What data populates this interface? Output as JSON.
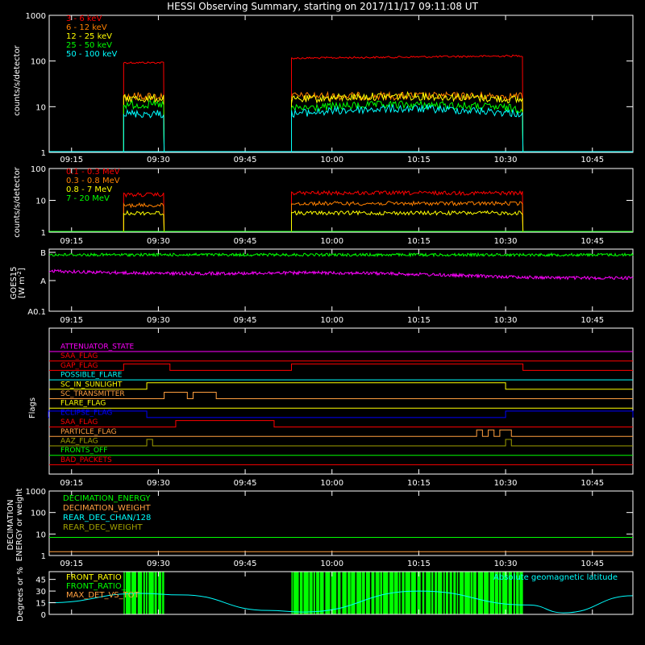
{
  "title": "HESSI Observing Summary, starting on 2017/11/17 09:11:08 UT",
  "x_tick_labels": [
    "09:15",
    "09:30",
    "09:45",
    "10:00",
    "10:15",
    "10:30",
    "10:45"
  ],
  "colors": {
    "red": "#ff0000",
    "orange": "#ff8000",
    "yellow": "#ffff00",
    "green": "#00ff00",
    "cyan": "#00ffff",
    "magenta": "#ff00ff",
    "blue": "#0000ff",
    "white": "#ffffff",
    "olive": "#a0a000",
    "lightorange": "#ff9f3f"
  },
  "chart_data": [
    {
      "type": "line",
      "name": "low_energy",
      "ylabel": "counts/s/detector",
      "yscale": "log",
      "ylim": [
        1,
        1000
      ],
      "ytick_labels": [
        "1",
        "10",
        "100",
        "1000"
      ],
      "xlim": [
        "09:11:08",
        "10:52"
      ],
      "legend_position": "top-left",
      "series": [
        {
          "name": "3 - 6 keV",
          "color": "red",
          "segments": [
            {
              "start": "09:24",
              "end": "09:31",
              "value": 92
            },
            {
              "start": "09:53",
              "end": "10:33",
              "value": 115,
              "end_value": 130
            }
          ]
        },
        {
          "name": "6 - 12 keV",
          "color": "orange",
          "segments": [
            {
              "start": "09:24",
              "end": "09:31",
              "value": 17
            },
            {
              "start": "09:53",
              "end": "10:33",
              "value": 17
            }
          ]
        },
        {
          "name": "12 - 25 keV",
          "color": "yellow",
          "segments": [
            {
              "start": "09:24",
              "end": "09:31",
              "value": 15
            },
            {
              "start": "09:53",
              "end": "10:33",
              "value": 14,
              "peak": 17
            }
          ]
        },
        {
          "name": "25 - 50 keV",
          "color": "green",
          "segments": [
            {
              "start": "09:24",
              "end": "09:31",
              "value": 11
            },
            {
              "start": "09:53",
              "end": "10:33",
              "value": 9,
              "peak": 11
            }
          ]
        },
        {
          "name": "50 - 100 keV",
          "color": "cyan",
          "segments": [
            {
              "start": "09:24",
              "end": "09:31",
              "value": 7
            },
            {
              "start": "09:53",
              "end": "10:33",
              "value": 7,
              "peak": 9
            }
          ]
        }
      ]
    },
    {
      "type": "line",
      "name": "high_energy",
      "ylabel": "counts/s/detector",
      "yscale": "log",
      "ylim": [
        1,
        100
      ],
      "ytick_labels": [
        "1",
        "10",
        "100"
      ],
      "legend_position": "top-left",
      "series": [
        {
          "name": "0.1 - 0.3 MeV",
          "color": "red",
          "segments": [
            {
              "start": "09:24",
              "end": "09:31",
              "value": 15
            },
            {
              "start": "09:53",
              "end": "10:33",
              "value": 17
            }
          ]
        },
        {
          "name": "0.3 - 0.8 MeV",
          "color": "orange",
          "segments": [
            {
              "start": "09:24",
              "end": "09:31",
              "value": 7
            },
            {
              "start": "09:53",
              "end": "10:33",
              "value": 8
            }
          ]
        },
        {
          "name": "0.8 - 7 MeV",
          "color": "yellow",
          "segments": [
            {
              "start": "09:24",
              "end": "09:31",
              "value": 4
            },
            {
              "start": "09:53",
              "end": "10:33",
              "value": 4
            }
          ]
        },
        {
          "name": "7 - 20 MeV",
          "color": "green",
          "segments": [
            {
              "start": "09:11",
              "end": "10:52",
              "value": 1
            }
          ]
        }
      ]
    },
    {
      "type": "line",
      "name": "goes",
      "ylabel": "GOES15",
      "ylabel2": "[W m^-2]",
      "ytick_labels": [
        "A0.1",
        "A",
        "B"
      ],
      "series": [
        {
          "name": "",
          "color": "green",
          "level": "near B"
        },
        {
          "name": "",
          "color": "magenta",
          "level": "between A and B"
        }
      ]
    },
    {
      "type": "flags",
      "name": "flags",
      "ylabel": "Flags",
      "flags": [
        {
          "name": "ATTENUATOR_STATE",
          "color": "magenta",
          "on": []
        },
        {
          "name": "SAA_FLAG",
          "color": "red",
          "on": []
        },
        {
          "name": "GAP_FLAG",
          "color": "red",
          "on": [
            [
              "09:24",
              "09:32"
            ],
            [
              "09:53",
              "10:33"
            ]
          ]
        },
        {
          "name": "POSSIBLE_FLARE",
          "color": "cyan",
          "on": []
        },
        {
          "name": "SC_IN_SUNLIGHT",
          "color": "yellow",
          "on": [
            [
              "09:28",
              "10:30"
            ]
          ]
        },
        {
          "name": "SC_TRANSMITTER",
          "color": "lightorange",
          "on": [
            [
              "09:31",
              "09:35"
            ],
            [
              "09:36",
              "09:40"
            ]
          ]
        },
        {
          "name": "FLARE_FLAG",
          "color": "yellow",
          "on": []
        },
        {
          "name": "ECLIPSE_FLAG",
          "color": "blue",
          "on": [
            [
              "09:11",
              "09:28"
            ],
            [
              "10:30",
              "10:52"
            ]
          ]
        },
        {
          "name": "SAA_FLAG",
          "color": "red",
          "on": [
            [
              "09:33",
              "09:50"
            ]
          ]
        },
        {
          "name": "PARTICLE_FLAG",
          "color": "lightorange",
          "on": [
            [
              "10:25",
              "10:26"
            ],
            [
              "10:27",
              "10:28"
            ],
            [
              "10:29",
              "10:31"
            ]
          ]
        },
        {
          "name": "AAZ_FLAG",
          "color": "olive",
          "on": [
            [
              "09:28",
              "09:29"
            ],
            [
              "10:30",
              "10:31"
            ]
          ]
        },
        {
          "name": "FRONTS_OFF",
          "color": "green",
          "on": []
        },
        {
          "name": "BAD_PACKETS",
          "color": "red",
          "on": []
        }
      ]
    },
    {
      "type": "line",
      "name": "decimation",
      "ylabel": "DECIMATION",
      "ylabel2": "ENERGY or weight",
      "yscale": "log",
      "ylim": [
        1,
        1000
      ],
      "ytick_labels": [
        "1",
        "10",
        "100",
        "1000"
      ],
      "series": [
        {
          "name": "DECIMATION_ENERGY",
          "color": "green",
          "value": 7
        },
        {
          "name": "DECIMATION_WEIGHT",
          "color": "lightorange",
          "value": 1.5
        },
        {
          "name": "REAR_DEC_CHAN/128",
          "color": "cyan",
          "value": null
        },
        {
          "name": "REAR_DEC_WEIGHT",
          "color": "olive",
          "value": null
        }
      ]
    },
    {
      "type": "line",
      "name": "ratios",
      "ylabel": "Degrees or %",
      "ylim": [
        0,
        55
      ],
      "ytick_labels": [
        "0",
        "15",
        "30",
        "45"
      ],
      "series": [
        {
          "name": "FRONT_RATIO",
          "color": "yellow"
        },
        {
          "name": "FRONT_RATIO_ ...",
          "color": "green",
          "bursts": [
            [
              "09:24",
              "09:31"
            ],
            [
              "09:53",
              "10:33"
            ]
          ]
        },
        {
          "name": "MAX_DET_VS_TOT",
          "color": "lightorange"
        },
        {
          "name": "Absolute geomagnetic latitude",
          "color": "cyan",
          "points": [
            [
              "09:11",
              15
            ],
            [
              "09:27",
              27
            ],
            [
              "09:34",
              25
            ],
            [
              "09:49",
              5
            ],
            [
              "09:55",
              3
            ],
            [
              "10:15",
              30
            ],
            [
              "10:34",
              12
            ],
            [
              "10:40",
              2
            ],
            [
              "10:52",
              24
            ]
          ]
        }
      ]
    }
  ],
  "labels": {
    "p1_ylabel": "counts/s/detector",
    "p2_ylabel": "counts/s/detector",
    "goes_ylabel": "GOES15",
    "goes_units": "[W m",
    "goes_units_sup": "-2",
    "goes_units_end": "]",
    "flags_ylabel": "Flags",
    "dec_ylabel1": "DECIMATION",
    "dec_ylabel2": "ENERGY or weight",
    "ratio_ylabel": "Degrees or %"
  }
}
